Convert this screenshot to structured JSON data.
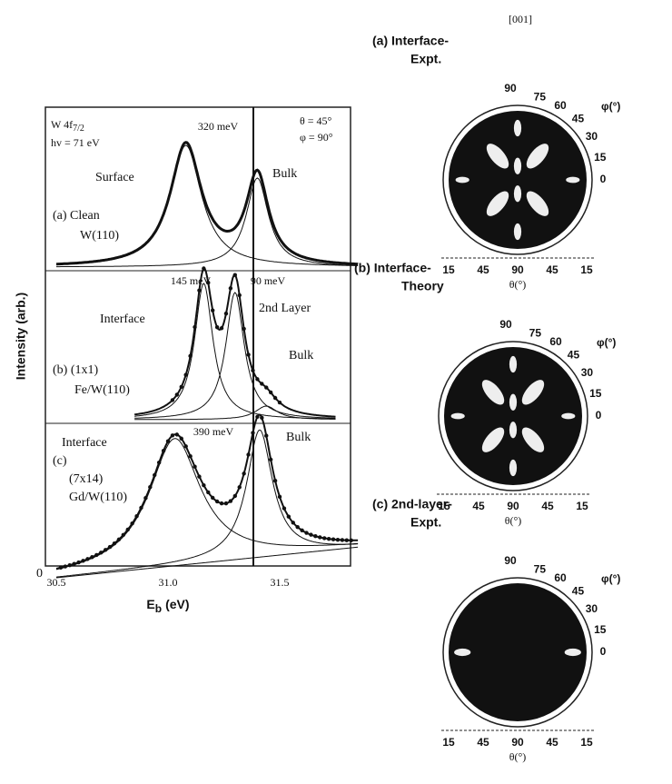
{
  "spectra": {
    "ylabel": "Intensity (arb.)",
    "xlabel": {
      "symbol": "E",
      "subscript": "b",
      "unit": "(eV)"
    },
    "xticks": [
      "30.5",
      "31.0",
      "31.5"
    ],
    "yzero": "0",
    "line": {
      "text": "W 4f",
      "subscript": "7/2"
    },
    "photon": "hv = 71 eV",
    "theta": "θ = 45°",
    "phi": "φ = 90°",
    "panels": [
      {
        "label": "(a) Clean",
        "sample": "W(110)",
        "splits": [
          "320 meV"
        ],
        "peaks": [
          "Surface",
          "Bulk"
        ]
      },
      {
        "label": "(b) (1x1)",
        "sample": "Fe/W(110)",
        "splits": [
          "145 meV",
          "90 meV"
        ],
        "peaks": [
          "Interface",
          "2nd Layer",
          "Bulk"
        ]
      },
      {
        "label": "(c)",
        "sample": "(7x14)",
        "sample2": "Gd/W(110)",
        "splits": [
          "390 meV"
        ],
        "peaks": [
          "Interface",
          "Bulk"
        ]
      }
    ]
  },
  "patterns": [
    {
      "title": "(a) Interface-",
      "title2": "Expt.",
      "direction": "[001]"
    },
    {
      "title": "(b) Interface-",
      "title2": "Theory"
    },
    {
      "title": "(c) 2nd-layer-",
      "title2": "Expt."
    }
  ],
  "pattern_axes": {
    "phi_ticks": [
      "90",
      "75",
      "60",
      "45",
      "30",
      "15",
      "0"
    ],
    "phi_label": "φ(°)",
    "theta_ticks": [
      "15",
      "45",
      "90",
      "45",
      "15"
    ],
    "theta_label": "θ(°)"
  }
}
